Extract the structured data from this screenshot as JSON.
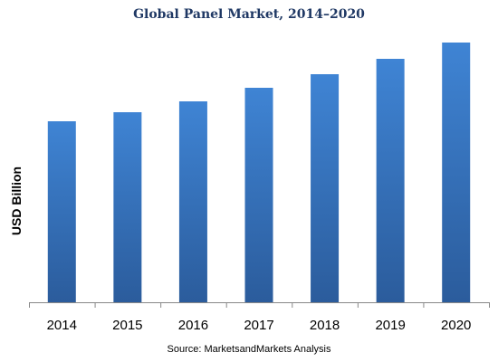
{
  "chart_data": {
    "type": "bar",
    "title": "Global Panel Market, 2014–2020",
    "xlabel": "",
    "ylabel": "USD Billion",
    "categories": [
      "2014",
      "2015",
      "2016",
      "2017",
      "2018",
      "2019",
      "2020"
    ],
    "values": [
      200,
      210,
      222,
      237,
      252,
      269,
      287
    ],
    "ylim": [
      0,
      300
    ],
    "grid": false,
    "legend": "none",
    "bar_color_top": "#3f84d4",
    "bar_color_bottom": "#2b5c9c",
    "axis_color": "#888888"
  },
  "source": "Source: MarketsandMarkets Analysis"
}
